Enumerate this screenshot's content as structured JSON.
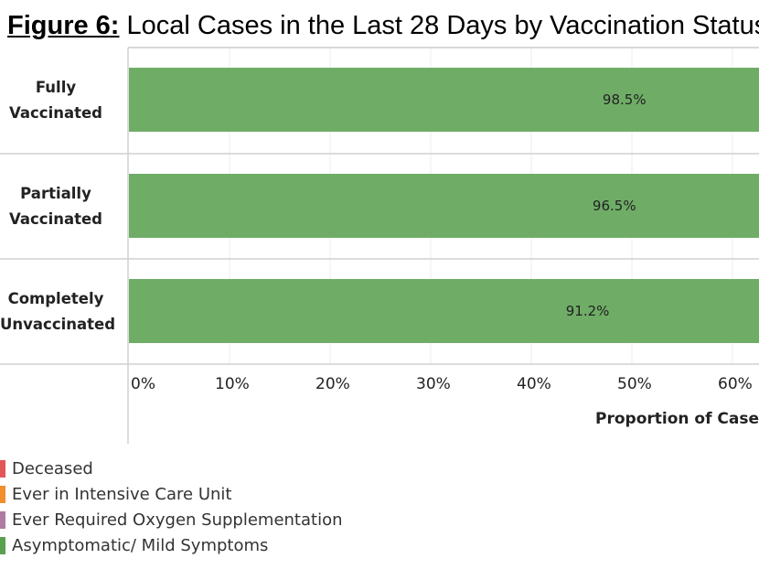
{
  "title": {
    "prefix": "Figure 6:",
    "text": " Local Cases in the Last 28 Days by Vaccination Status"
  },
  "chart_data": {
    "type": "bar",
    "orientation": "horizontal",
    "stacked": true,
    "categories": [
      "Fully Vaccinated",
      "Partially Vaccinated",
      "Completely Unvaccinated"
    ],
    "category_lines": [
      [
        "Fully",
        "Vaccinated"
      ],
      [
        "Partially",
        "Vaccinated"
      ],
      [
        "Completely",
        "Unvaccinated"
      ]
    ],
    "series": [
      {
        "name": "Asymptomatic/ Mild Symptoms",
        "color": "#6fad67",
        "values": [
          98.5,
          96.5,
          91.2
        ],
        "labels": [
          "98.5%",
          "96.5%",
          "91.2%"
        ]
      }
    ],
    "legend": [
      {
        "name": "Deceased",
        "color": "#e15759"
      },
      {
        "name": "Ever in Intensive Care Unit",
        "color": "#f28e2b"
      },
      {
        "name": "Ever Required Oxygen Supplementation",
        "color": "#b07aa1"
      },
      {
        "name": "Asymptomatic/ Mild Symptoms",
        "color": "#59a14f"
      }
    ],
    "xticks": [
      "0%",
      "10%",
      "20%",
      "30%",
      "40%",
      "50%",
      "60%"
    ],
    "xtick_values": [
      0,
      10,
      20,
      30,
      40,
      50,
      60
    ],
    "xlabel": "Proportion of Cases",
    "xlim": [
      0,
      100
    ],
    "grid": true,
    "legend_placement": "bottom-left"
  }
}
